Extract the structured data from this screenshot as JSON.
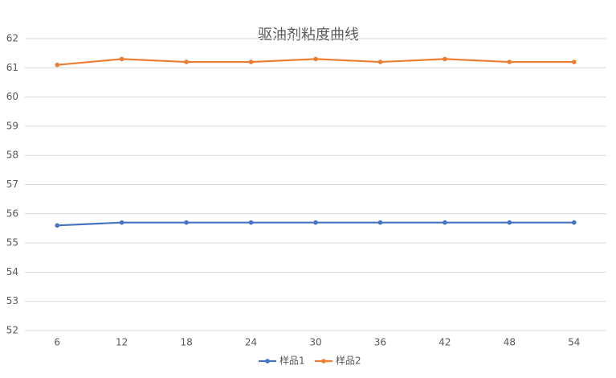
{
  "chart_data": {
    "type": "line",
    "title": "驱油剂粘度曲线",
    "categories": [
      "6",
      "12",
      "18",
      "24",
      "30",
      "36",
      "42",
      "48",
      "54"
    ],
    "series": [
      {
        "name": "样品1",
        "color": "#4472c4",
        "values": [
          55.6,
          55.7,
          55.7,
          55.7,
          55.7,
          55.7,
          55.7,
          55.7,
          55.7
        ]
      },
      {
        "name": "样品2",
        "color": "#ed7d31",
        "values": [
          61.1,
          61.3,
          61.2,
          61.2,
          61.3,
          61.2,
          61.3,
          61.2,
          61.2
        ]
      }
    ],
    "ylim": [
      52,
      62
    ],
    "yticks": [
      52,
      53,
      54,
      55,
      56,
      57,
      58,
      59,
      60,
      61,
      62
    ],
    "grid": true,
    "legend": "bottom"
  }
}
